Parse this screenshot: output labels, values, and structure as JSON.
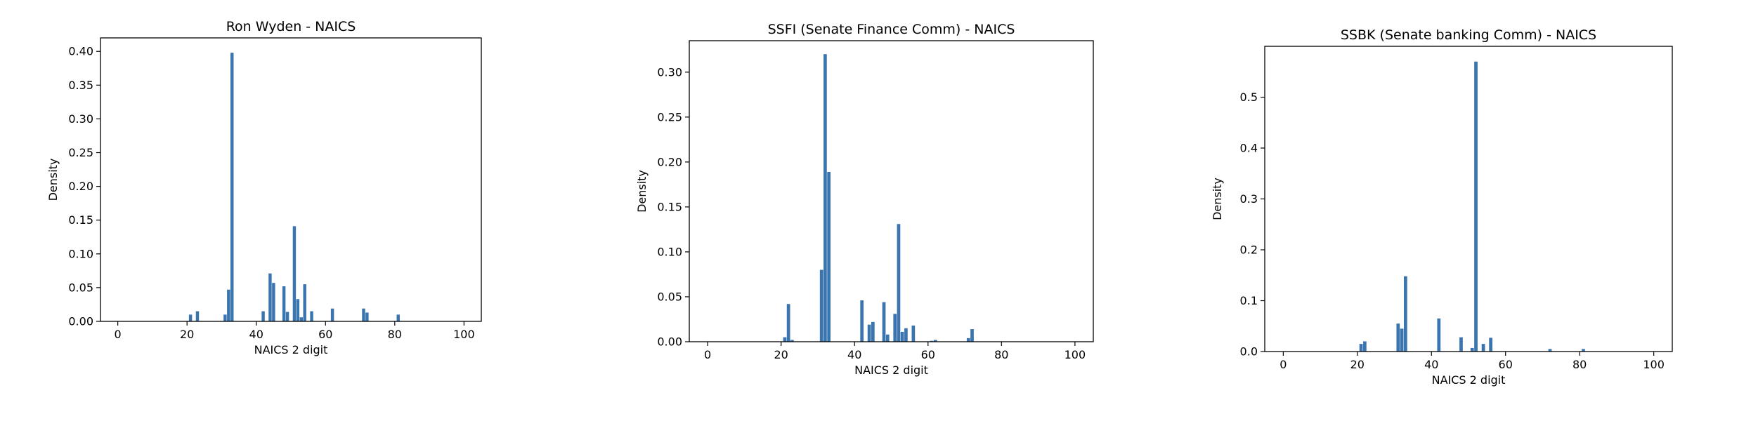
{
  "colors": {
    "bar": "#3a75af",
    "axis": "#000000"
  },
  "chart_data": [
    {
      "type": "bar",
      "title": "Ron Wyden - NAICS",
      "xlabel": "NAICS 2 digit",
      "ylabel": "Density",
      "xlim": [
        -5,
        105
      ],
      "ylim": [
        0,
        0.42
      ],
      "xticks": [
        0,
        20,
        40,
        60,
        80,
        100
      ],
      "yticks": [
        0.0,
        0.05,
        0.1,
        0.15,
        0.2,
        0.25,
        0.3,
        0.35,
        0.4
      ],
      "ytick_labels": [
        "0.00",
        "0.05",
        "0.10",
        "0.15",
        "0.20",
        "0.25",
        "0.30",
        "0.35",
        "0.40"
      ],
      "grid": false,
      "x": [
        21,
        23,
        31,
        32,
        33,
        42,
        44,
        45,
        48,
        49,
        51,
        52,
        53,
        54,
        56,
        62,
        71,
        72,
        81
      ],
      "values": [
        0.01,
        0.015,
        0.01,
        0.047,
        0.398,
        0.015,
        0.071,
        0.057,
        0.052,
        0.014,
        0.141,
        0.033,
        0.006,
        0.055,
        0.015,
        0.019,
        0.019,
        0.013,
        0.01
      ]
    },
    {
      "type": "bar",
      "title": "SSFI (Senate Finance Comm) - NAICS",
      "xlabel": "NAICS 2 digit",
      "ylabel": "Density",
      "xlim": [
        -5,
        105
      ],
      "ylim": [
        0,
        0.335
      ],
      "xticks": [
        0,
        20,
        40,
        60,
        80,
        100
      ],
      "yticks": [
        0.0,
        0.05,
        0.1,
        0.15,
        0.2,
        0.25,
        0.3
      ],
      "ytick_labels": [
        "0.00",
        "0.05",
        "0.10",
        "0.15",
        "0.20",
        "0.25",
        "0.30"
      ],
      "grid": false,
      "x": [
        21,
        22,
        23,
        31,
        32,
        33,
        42,
        44,
        45,
        48,
        49,
        51,
        52,
        53,
        54,
        56,
        61,
        62,
        71,
        72
      ],
      "values": [
        0.005,
        0.042,
        0.002,
        0.08,
        0.32,
        0.189,
        0.046,
        0.019,
        0.022,
        0.044,
        0.008,
        0.031,
        0.131,
        0.011,
        0.015,
        0.018,
        0.001,
        0.002,
        0.004,
        0.014
      ]
    },
    {
      "type": "bar",
      "title": "SSBK (Senate banking Comm) - NAICS",
      "xlabel": "NAICS 2 digit",
      "ylabel": "Density",
      "xlim": [
        -5,
        105
      ],
      "ylim": [
        0,
        0.6
      ],
      "xticks": [
        0,
        20,
        40,
        60,
        80,
        100
      ],
      "yticks": [
        0.0,
        0.1,
        0.2,
        0.3,
        0.4,
        0.5
      ],
      "ytick_labels": [
        "0.0",
        "0.1",
        "0.2",
        "0.3",
        "0.4",
        "0.5"
      ],
      "grid": false,
      "x": [
        21,
        22,
        31,
        32,
        33,
        42,
        48,
        51,
        52,
        54,
        56,
        72,
        81
      ],
      "values": [
        0.015,
        0.02,
        0.055,
        0.045,
        0.148,
        0.065,
        0.028,
        0.007,
        0.57,
        0.015,
        0.027,
        0.005,
        0.005
      ]
    }
  ]
}
